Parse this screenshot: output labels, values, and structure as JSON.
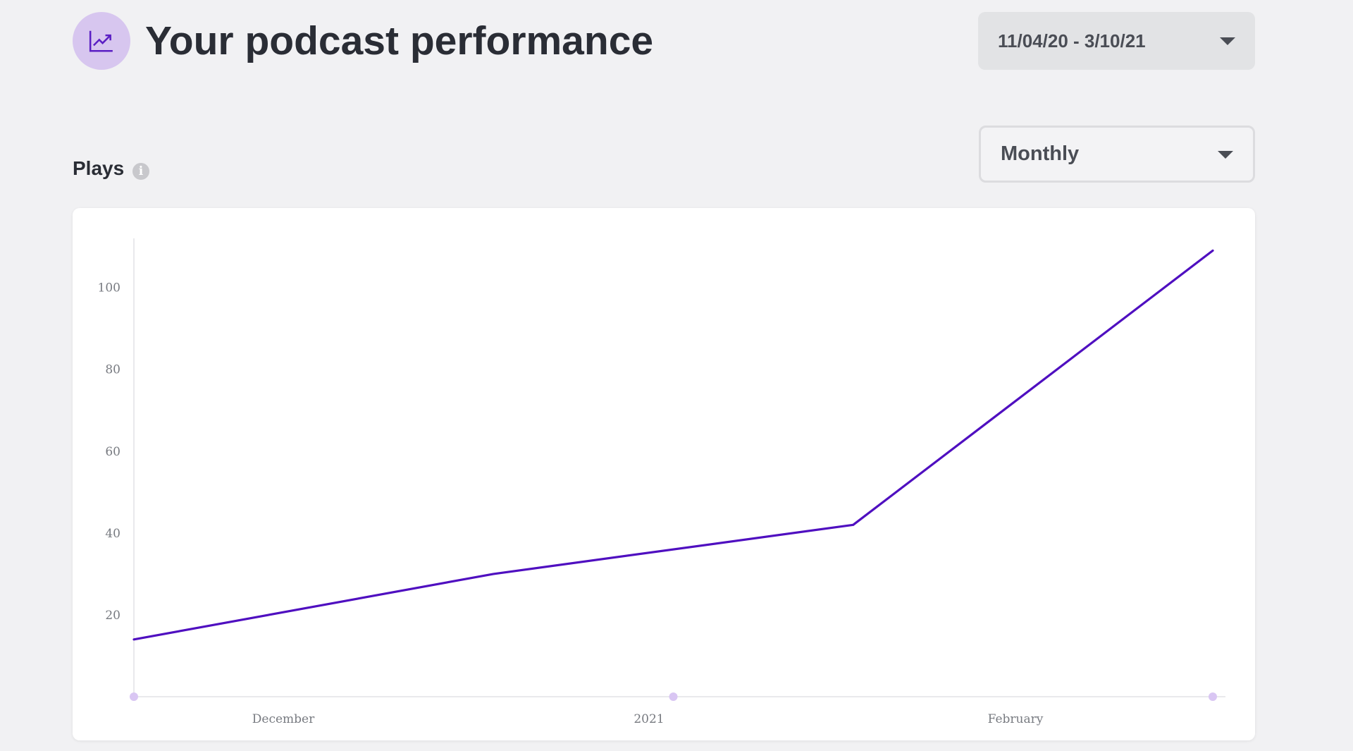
{
  "header": {
    "title": "Your podcast performance",
    "icon": "trending-up-icon",
    "icon_bg": "#d7c6ef",
    "icon_color": "#5b1fc4"
  },
  "date_range": {
    "value": "11/04/20 - 3/10/21"
  },
  "period": {
    "value": "Monthly"
  },
  "metric": {
    "label": "Plays",
    "info_icon": "info-icon"
  },
  "chart_data": {
    "type": "line",
    "title": "",
    "xlabel": "",
    "ylabel": "",
    "x_ticks": [
      "December",
      "2021",
      "February"
    ],
    "y_ticks": [
      20,
      40,
      60,
      80,
      100
    ],
    "ylim": [
      0,
      112
    ],
    "grid": false,
    "series": [
      {
        "color": "#4f0fc0",
        "values": [
          14,
          30,
          42,
          109
        ]
      }
    ],
    "x_axis_markers": 3,
    "marker_color": "#d9c6f3"
  }
}
